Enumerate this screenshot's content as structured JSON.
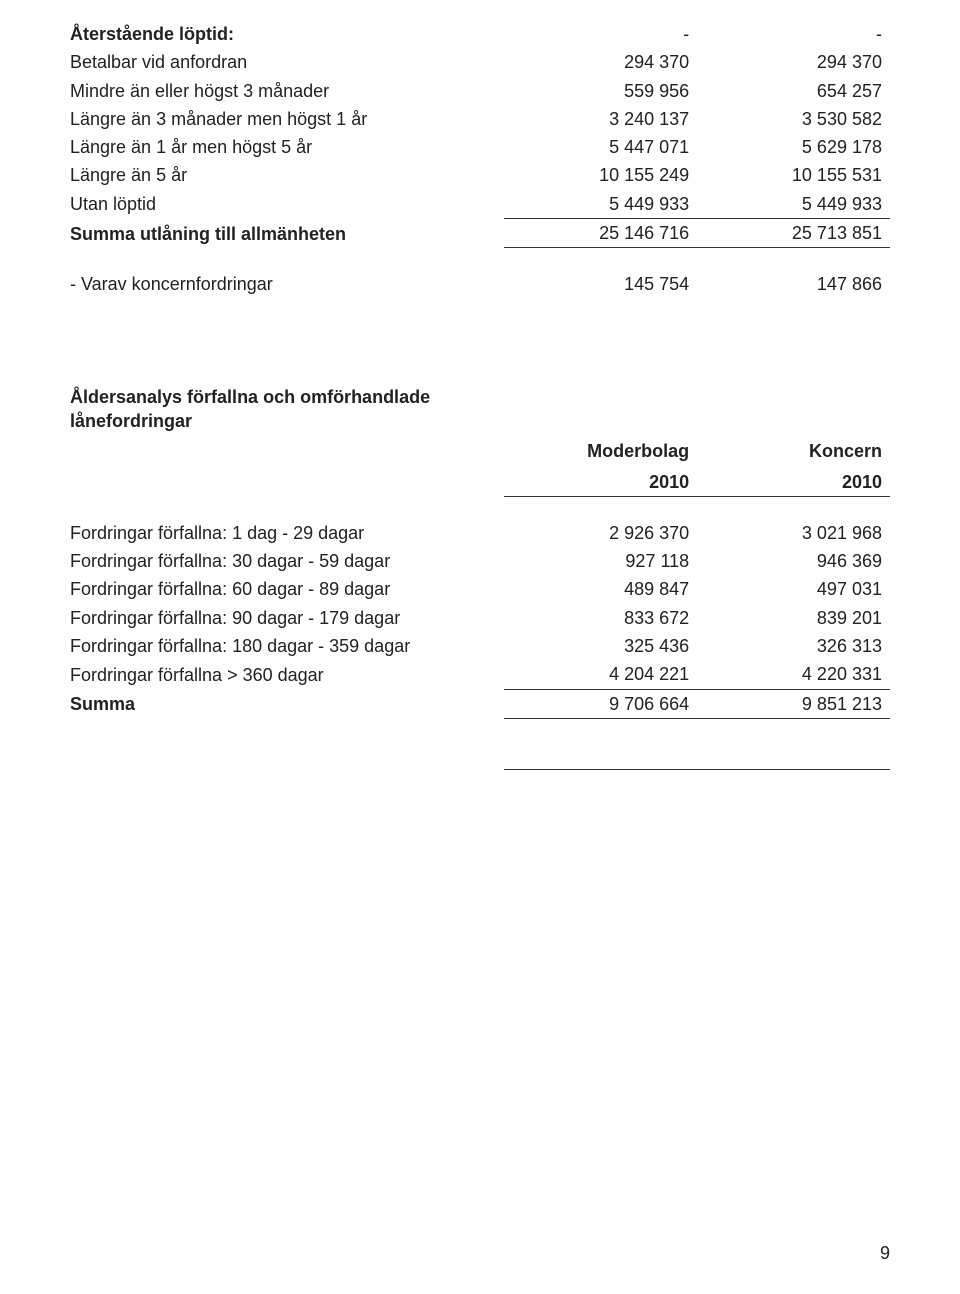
{
  "table1": {
    "heading": "Återstående löptid:",
    "rows": [
      {
        "label": "Betalbar vid anfordran",
        "c1": "294 370",
        "c2": "294 370"
      },
      {
        "label": "Mindre än eller högst 3 månader",
        "c1": "559 956",
        "c2": "654 257"
      },
      {
        "label": "Längre än 3 månader men högst 1 år",
        "c1": "3 240 137",
        "c2": "3 530 582"
      },
      {
        "label": "Längre än 1 år men högst 5 år",
        "c1": "5 447 071",
        "c2": "5 629 178"
      },
      {
        "label": "Längre än 5 år",
        "c1": "10 155 249",
        "c2": "10 155 531"
      },
      {
        "label": "Utan löptid",
        "c1": "5 449 933",
        "c2": "5 449 933"
      }
    ],
    "total_label": "Summa utlåning till allmänheten",
    "total_c1": "25 146 716",
    "total_c2": "25 713 851",
    "koncern_label": "- Varav koncernfordringar",
    "koncern_c1": "145 754",
    "koncern_c2": "147 866",
    "dash": "-"
  },
  "table2": {
    "heading": "Åldersanalys förfallna och omförhandlade lånefordringar",
    "col1_title": "Moderbolag",
    "col2_title": "Koncern",
    "col1_year": "2010",
    "col2_year": "2010",
    "rows": [
      {
        "label": "Fordringar förfallna: 1 dag - 29 dagar",
        "c1": "2 926 370",
        "c2": "3 021 968"
      },
      {
        "label": "Fordringar förfallna:  30 dagar - 59 dagar",
        "c1": "927 118",
        "c2": "946 369"
      },
      {
        "label": "Fordringar förfallna:  60 dagar - 89 dagar",
        "c1": "489 847",
        "c2": "497 031"
      },
      {
        "label": "Fordringar förfallna: 90 dagar - 179 dagar",
        "c1": "833 672",
        "c2": "839 201"
      },
      {
        "label": "Fordringar förfallna: 180 dagar - 359 dagar",
        "c1": "325 436",
        "c2": "326 313"
      },
      {
        "label": "Fordringar förfallna > 360 dagar",
        "c1": "4 204 221",
        "c2": "4 220 331"
      }
    ],
    "total_label": "Summa",
    "total_c1": "9 706 664",
    "total_c2": "9 851 213"
  },
  "page_number": "9"
}
